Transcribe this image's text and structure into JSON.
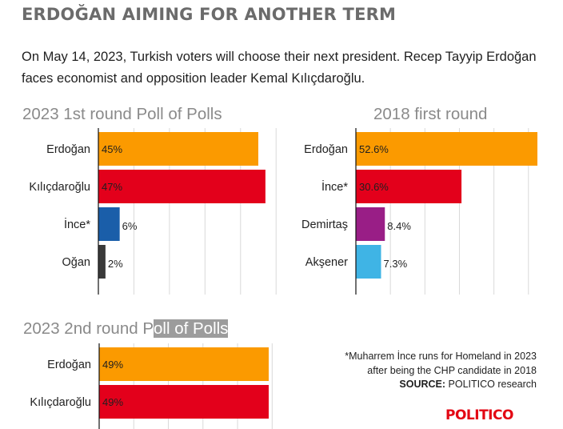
{
  "title": "ERDOĞAN AIMING FOR ANOTHER TERM",
  "subtitle": "On May 14, 2023, Turkish voters will choose their next president. Recep Tayyip Erdoğan faces economist and opposition leader Kemal Kılıçdaroğlu.",
  "panels": {
    "first_round_2023": {
      "title": "2023 1st round Poll of Polls"
    },
    "first_round_2018": {
      "title": "2018 first round"
    },
    "second_round_2023": {
      "title_plain": "2023 2nd round P",
      "title_highlight": "oll of Polls"
    }
  },
  "note": {
    "line1": "*Muharrem İnce runs for Homeland in 2023",
    "line2": "after being the CHP candidate in 2018",
    "source_label": "SOURCE:",
    "source_text": " POLITICO research"
  },
  "logo": "POLITICO",
  "colors": {
    "orange": "#fb9a00",
    "red": "#e3001b",
    "blue": "#1a5ea9",
    "dark": "#3a3a3a",
    "purple": "#991e86",
    "light_blue": "#3fb4e5",
    "grid": "#d9d9d9"
  },
  "chart_data": [
    {
      "type": "bar",
      "orientation": "horizontal",
      "title": "2023 1st round Poll of Polls",
      "categories": [
        "Erdoğan",
        "Kılıçdaroğlu",
        "İnce*",
        "Oğan"
      ],
      "values": [
        45,
        47,
        6,
        2
      ],
      "value_labels": [
        "45%",
        "47%",
        "6%",
        "2%"
      ],
      "colors": [
        "#fb9a00",
        "#e3001b",
        "#1a5ea9",
        "#3a3a3a"
      ],
      "xlim": [
        0,
        55
      ],
      "grid": true
    },
    {
      "type": "bar",
      "orientation": "horizontal",
      "title": "2018 first round",
      "categories": [
        "Erdoğan",
        "İnce*",
        "Demirtaş",
        "Akşener"
      ],
      "values": [
        52.6,
        30.6,
        8.4,
        7.3
      ],
      "value_labels": [
        "52.6%",
        "30.6%",
        "8.4%",
        "7.3%"
      ],
      "colors": [
        "#fb9a00",
        "#e3001b",
        "#991e86",
        "#3fb4e5"
      ],
      "xlim": [
        0,
        55
      ],
      "grid": true
    },
    {
      "type": "bar",
      "orientation": "horizontal",
      "title": "2023 2nd round Poll of Polls",
      "categories": [
        "Erdoğan",
        "Kılıçdaroğlu"
      ],
      "values": [
        49,
        49
      ],
      "value_labels": [
        "49%",
        "49%"
      ],
      "colors": [
        "#fb9a00",
        "#e3001b"
      ],
      "xlim": [
        0,
        55
      ],
      "grid": true
    }
  ]
}
